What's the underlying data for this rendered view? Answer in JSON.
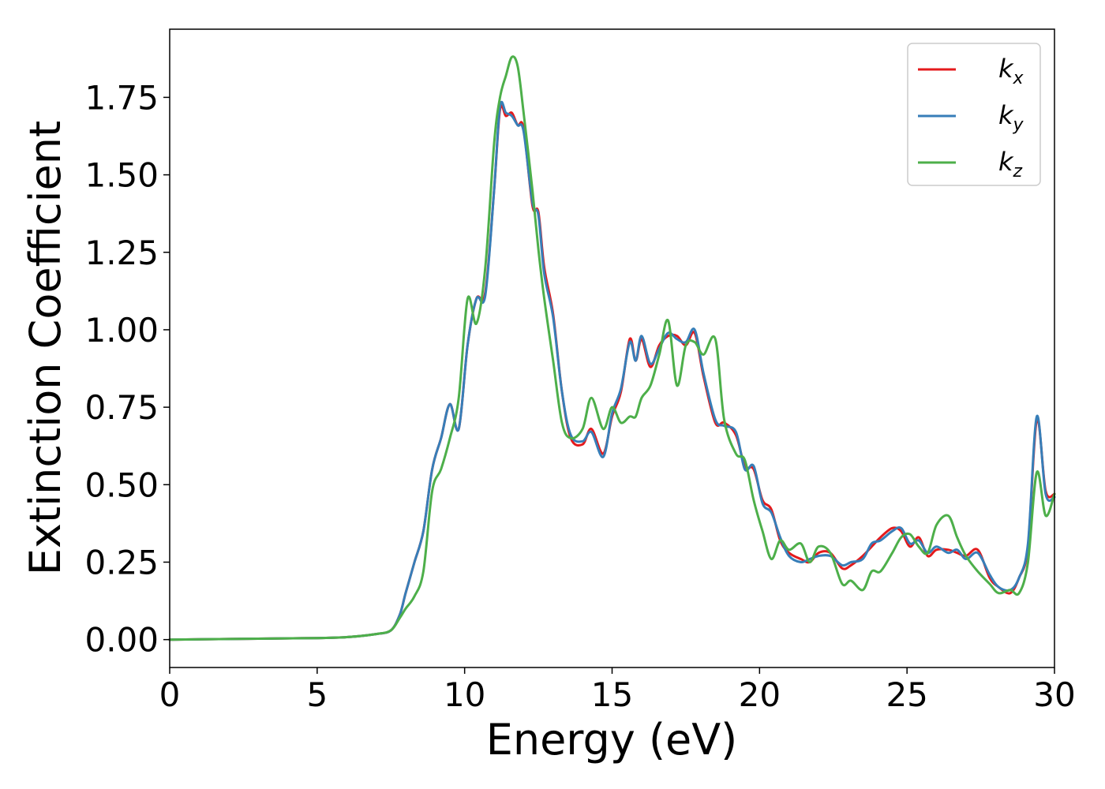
{
  "chart_data": {
    "type": "line",
    "title": "",
    "xlabel": "Energy (eV)",
    "ylabel": "Extinction Coefficient",
    "xlim": [
      0,
      30
    ],
    "ylim": [
      -0.09,
      1.97
    ],
    "xticks": [
      0,
      5,
      10,
      15,
      20,
      25,
      30
    ],
    "xtick_labels": [
      "0",
      "5",
      "10",
      "15",
      "20",
      "25",
      "30"
    ],
    "yticks": [
      0.0,
      0.25,
      0.5,
      0.75,
      1.0,
      1.25,
      1.5,
      1.75
    ],
    "ytick_labels": [
      "0.00",
      "0.25",
      "0.50",
      "0.75",
      "1.00",
      "1.25",
      "1.50",
      "1.75"
    ],
    "grid": false,
    "legend_position": "top-right",
    "series": [
      {
        "name": "k",
        "subscript": "x",
        "color": "#e41a1c",
        "x": [
          0,
          3,
          5,
          6,
          7,
          7.5,
          7.8,
          8.0,
          8.3,
          8.6,
          8.9,
          9.2,
          9.5,
          9.8,
          10.1,
          10.4,
          10.7,
          11.0,
          11.2,
          11.4,
          11.6,
          11.8,
          12.0,
          12.3,
          12.5,
          12.7,
          13.0,
          13.3,
          13.6,
          14.0,
          14.3,
          14.7,
          15.0,
          15.3,
          15.6,
          15.8,
          16.0,
          16.3,
          16.6,
          16.9,
          17.2,
          17.5,
          17.8,
          18.1,
          18.5,
          18.8,
          19.2,
          19.5,
          19.8,
          20.1,
          20.4,
          20.7,
          21.0,
          21.4,
          21.7,
          22.0,
          22.4,
          22.8,
          23.1,
          23.5,
          23.8,
          24.1,
          24.5,
          24.8,
          25.1,
          25.4,
          25.7,
          26.0,
          26.4,
          26.7,
          27.0,
          27.4,
          27.8,
          28.1,
          28.5,
          28.8,
          29.1,
          29.4,
          29.7,
          30.0
        ],
        "y": [
          0.0,
          0.003,
          0.005,
          0.008,
          0.018,
          0.03,
          0.08,
          0.15,
          0.25,
          0.35,
          0.55,
          0.65,
          0.76,
          0.68,
          0.95,
          1.1,
          1.12,
          1.45,
          1.71,
          1.69,
          1.7,
          1.66,
          1.65,
          1.4,
          1.38,
          1.2,
          1.05,
          0.8,
          0.65,
          0.63,
          0.68,
          0.6,
          0.72,
          0.8,
          0.97,
          0.9,
          0.97,
          0.88,
          0.95,
          0.98,
          0.98,
          0.95,
          0.99,
          0.85,
          0.7,
          0.7,
          0.66,
          0.56,
          0.55,
          0.45,
          0.42,
          0.32,
          0.28,
          0.26,
          0.25,
          0.28,
          0.28,
          0.23,
          0.24,
          0.27,
          0.3,
          0.33,
          0.36,
          0.35,
          0.3,
          0.33,
          0.27,
          0.29,
          0.29,
          0.28,
          0.27,
          0.29,
          0.2,
          0.17,
          0.15,
          0.2,
          0.3,
          0.71,
          0.48,
          0.47
        ]
      },
      {
        "name": "k",
        "subscript": "y",
        "color": "#377eb8",
        "x": [
          0,
          3,
          5,
          6,
          7,
          7.5,
          7.8,
          8.0,
          8.3,
          8.6,
          8.9,
          9.2,
          9.5,
          9.8,
          10.1,
          10.4,
          10.7,
          11.0,
          11.2,
          11.4,
          11.6,
          11.8,
          12.0,
          12.3,
          12.5,
          12.7,
          13.0,
          13.3,
          13.6,
          14.0,
          14.3,
          14.7,
          15.0,
          15.3,
          15.6,
          15.8,
          16.0,
          16.3,
          16.6,
          16.9,
          17.2,
          17.5,
          17.8,
          18.1,
          18.5,
          18.8,
          19.2,
          19.5,
          19.8,
          20.1,
          20.4,
          20.7,
          21.0,
          21.4,
          21.7,
          22.0,
          22.4,
          22.8,
          23.1,
          23.5,
          23.8,
          24.1,
          24.5,
          24.8,
          25.1,
          25.4,
          25.7,
          26.0,
          26.4,
          26.7,
          27.0,
          27.4,
          27.8,
          28.1,
          28.5,
          28.8,
          29.1,
          29.4,
          29.7,
          30.0
        ],
        "y": [
          0.0,
          0.003,
          0.005,
          0.008,
          0.018,
          0.03,
          0.08,
          0.15,
          0.25,
          0.35,
          0.55,
          0.65,
          0.76,
          0.68,
          0.95,
          1.1,
          1.11,
          1.45,
          1.72,
          1.7,
          1.69,
          1.66,
          1.64,
          1.41,
          1.37,
          1.18,
          1.04,
          0.8,
          0.66,
          0.64,
          0.67,
          0.59,
          0.73,
          0.81,
          0.96,
          0.9,
          0.98,
          0.89,
          0.94,
          0.99,
          0.97,
          0.96,
          1.0,
          0.86,
          0.71,
          0.69,
          0.67,
          0.55,
          0.56,
          0.44,
          0.41,
          0.33,
          0.27,
          0.25,
          0.26,
          0.27,
          0.27,
          0.24,
          0.25,
          0.26,
          0.31,
          0.32,
          0.35,
          0.36,
          0.31,
          0.32,
          0.28,
          0.3,
          0.28,
          0.29,
          0.26,
          0.28,
          0.21,
          0.17,
          0.16,
          0.2,
          0.31,
          0.72,
          0.47,
          0.46
        ]
      },
      {
        "name": "k",
        "subscript": "z",
        "color": "#4daf4a",
        "x": [
          0,
          3,
          5,
          6,
          7,
          7.5,
          7.8,
          8.0,
          8.3,
          8.6,
          8.9,
          9.2,
          9.5,
          9.8,
          10.1,
          10.4,
          10.7,
          11.0,
          11.2,
          11.4,
          11.6,
          11.8,
          12.0,
          12.3,
          12.5,
          12.7,
          13.0,
          13.3,
          13.6,
          14.0,
          14.3,
          14.7,
          15.0,
          15.3,
          15.6,
          15.8,
          16.0,
          16.3,
          16.6,
          16.9,
          17.2,
          17.5,
          17.8,
          18.1,
          18.5,
          18.8,
          19.2,
          19.5,
          19.8,
          20.1,
          20.4,
          20.7,
          21.0,
          21.4,
          21.7,
          22.0,
          22.4,
          22.8,
          23.1,
          23.5,
          23.8,
          24.1,
          24.5,
          24.8,
          25.1,
          25.4,
          25.7,
          26.0,
          26.4,
          26.7,
          27.0,
          27.4,
          27.8,
          28.1,
          28.5,
          28.8,
          29.1,
          29.4,
          29.7,
          30.0
        ],
        "y": [
          0.0,
          0.003,
          0.005,
          0.008,
          0.018,
          0.03,
          0.07,
          0.1,
          0.14,
          0.22,
          0.48,
          0.55,
          0.65,
          0.78,
          1.1,
          1.02,
          1.2,
          1.6,
          1.75,
          1.82,
          1.88,
          1.85,
          1.7,
          1.45,
          1.26,
          1.1,
          0.9,
          0.7,
          0.65,
          0.68,
          0.78,
          0.68,
          0.75,
          0.7,
          0.72,
          0.72,
          0.78,
          0.82,
          0.92,
          1.03,
          0.82,
          0.95,
          0.96,
          0.92,
          0.97,
          0.71,
          0.6,
          0.58,
          0.45,
          0.35,
          0.26,
          0.32,
          0.29,
          0.31,
          0.25,
          0.3,
          0.28,
          0.18,
          0.19,
          0.16,
          0.22,
          0.22,
          0.28,
          0.33,
          0.34,
          0.3,
          0.28,
          0.37,
          0.4,
          0.33,
          0.27,
          0.22,
          0.18,
          0.15,
          0.16,
          0.15,
          0.25,
          0.54,
          0.4,
          0.47
        ]
      }
    ]
  }
}
